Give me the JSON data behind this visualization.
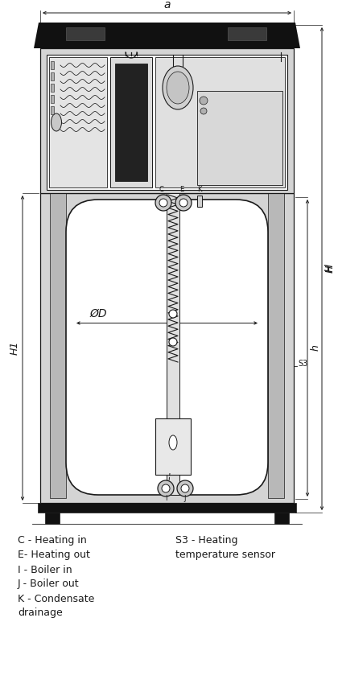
{
  "bg_color": "#ffffff",
  "line_color": "#1a1a1a",
  "gray_light": "#d4d4d4",
  "gray_mid": "#b8b8b8",
  "gray_dark": "#888888",
  "black": "#111111",
  "legend_left": [
    "C - Heating in",
    "E- Heating out",
    "I - Boiler in",
    "J - Boiler out",
    "K - Condensate",
    "drainage"
  ],
  "legend_right": [
    "S3 - Heating",
    "temperature sensor"
  ],
  "dim_a": "a",
  "dim_H1": "H1",
  "dim_h": "h",
  "dim_H": "H",
  "dim_OD": "ØD",
  "dim_S3": "S3"
}
